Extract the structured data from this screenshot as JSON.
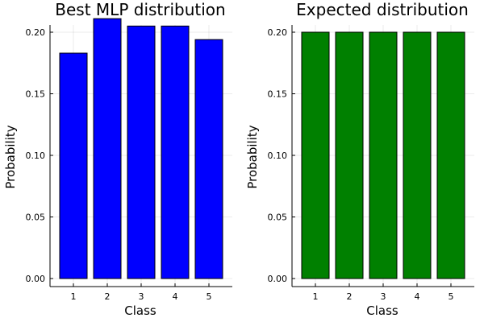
{
  "chart_data": [
    {
      "type": "bar",
      "title": "Best MLP distribution",
      "xlabel": "Class",
      "ylabel": "Probability",
      "categories": [
        "1",
        "2",
        "3",
        "4",
        "5"
      ],
      "values": [
        0.183,
        0.211,
        0.205,
        0.205,
        0.194
      ],
      "ylim": [
        0,
        0.2
      ],
      "yticks": [
        0.0,
        0.05,
        0.1,
        0.15,
        0.2
      ],
      "ytick_labels": [
        "0.00",
        "0.05",
        "0.10",
        "0.15",
        "0.20"
      ],
      "color": "#0000ff",
      "grid": true,
      "legend": "none"
    },
    {
      "type": "bar",
      "title": "Expected distribution",
      "xlabel": "Class",
      "ylabel": "Probability",
      "categories": [
        "1",
        "2",
        "3",
        "4",
        "5"
      ],
      "values": [
        0.2,
        0.2,
        0.2,
        0.2,
        0.2
      ],
      "ylim": [
        0,
        0.2
      ],
      "yticks": [
        0.0,
        0.05,
        0.1,
        0.15,
        0.2
      ],
      "ytick_labels": [
        "0.00",
        "0.05",
        "0.10",
        "0.15",
        "0.20"
      ],
      "color": "#008000",
      "grid": true,
      "legend": "none"
    }
  ]
}
